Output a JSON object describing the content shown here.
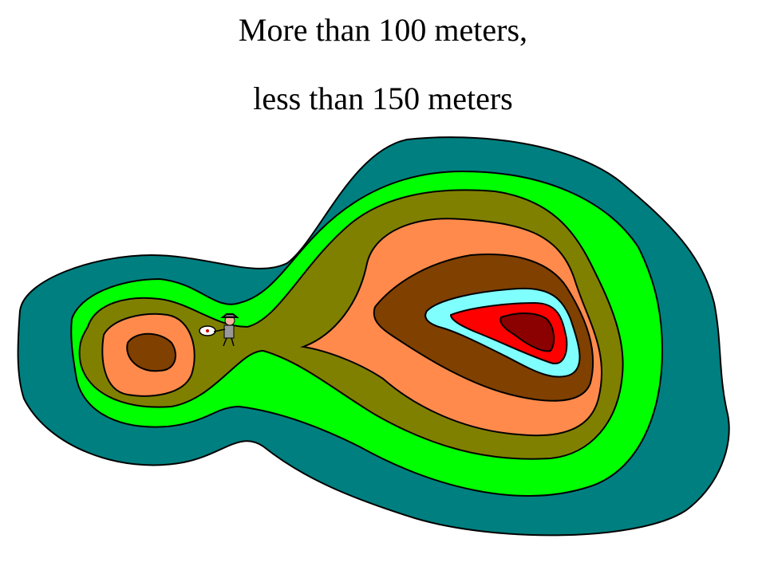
{
  "title": {
    "line1": "More than 100 meters,",
    "line2": "less than 150 meters"
  }
}
